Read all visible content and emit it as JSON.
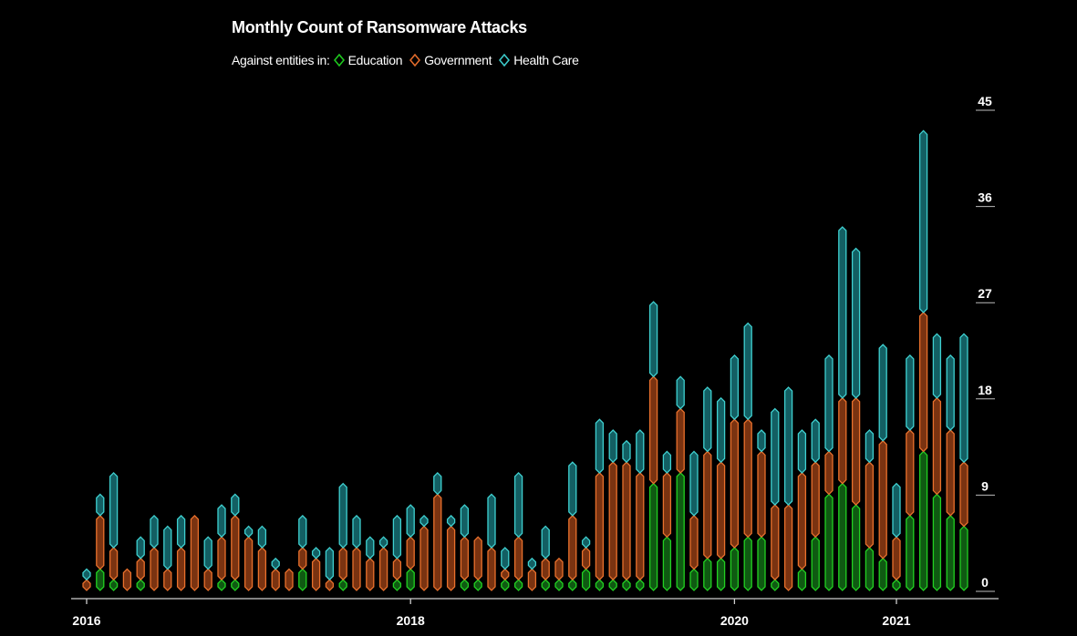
{
  "chart_data": {
    "type": "bar",
    "stacked": true,
    "title": "Monthly Count of Ransomware Attacks",
    "legend_prefix": "Against entities in:",
    "legend_position": "top-left",
    "ylim": [
      0,
      45
    ],
    "y_ticks": [
      "0",
      "9",
      "18",
      "27",
      "36",
      "45"
    ],
    "x_tick_labels": [
      {
        "label": "2016",
        "index": 0
      },
      {
        "label": "2018",
        "index": 24
      },
      {
        "label": "2020",
        "index": 48
      },
      {
        "label": "2021",
        "index": 60
      }
    ],
    "grid": false,
    "series": [
      {
        "name": "Education",
        "color": "#1a9e1a",
        "values": [
          0,
          2,
          1,
          0,
          1,
          0,
          0,
          0,
          0,
          0,
          1,
          1,
          0,
          0,
          0,
          0,
          2,
          0,
          0,
          1,
          0,
          0,
          0,
          1,
          2,
          0,
          0,
          0,
          1,
          1,
          0,
          1,
          1,
          0,
          1,
          1,
          1,
          2,
          1,
          1,
          1,
          1,
          10,
          5,
          11,
          2,
          3,
          3,
          4,
          5,
          5,
          1,
          0,
          2,
          5,
          9,
          10,
          8,
          4,
          3,
          1,
          7,
          13,
          9,
          7,
          6
        ]
      },
      {
        "name": "Government",
        "color": "#c0521d",
        "values": [
          1,
          5,
          3,
          2,
          2,
          4,
          2,
          4,
          7,
          2,
          4,
          6,
          5,
          4,
          2,
          2,
          2,
          3,
          1,
          3,
          4,
          3,
          4,
          2,
          3,
          6,
          9,
          6,
          4,
          4,
          4,
          1,
          4,
          2,
          2,
          2,
          6,
          2,
          10,
          11,
          11,
          10,
          10,
          6,
          6,
          5,
          10,
          9,
          12,
          11,
          8,
          7,
          8,
          9,
          7,
          4,
          8,
          10,
          8,
          11,
          4,
          8,
          13,
          9,
          8,
          6
        ]
      },
      {
        "name": "Health Care",
        "color": "#2aa8a8",
        "values": [
          1,
          2,
          7,
          0,
          2,
          3,
          4,
          3,
          0,
          3,
          3,
          2,
          1,
          2,
          1,
          0,
          3,
          1,
          3,
          6,
          3,
          2,
          1,
          4,
          3,
          1,
          2,
          1,
          3,
          0,
          5,
          2,
          6,
          1,
          3,
          0,
          5,
          1,
          5,
          3,
          2,
          4,
          7,
          2,
          3,
          6,
          6,
          6,
          6,
          9,
          2,
          9,
          11,
          4,
          4,
          9,
          16,
          14,
          3,
          9,
          5,
          7,
          17,
          6,
          7,
          12
        ]
      }
    ]
  }
}
